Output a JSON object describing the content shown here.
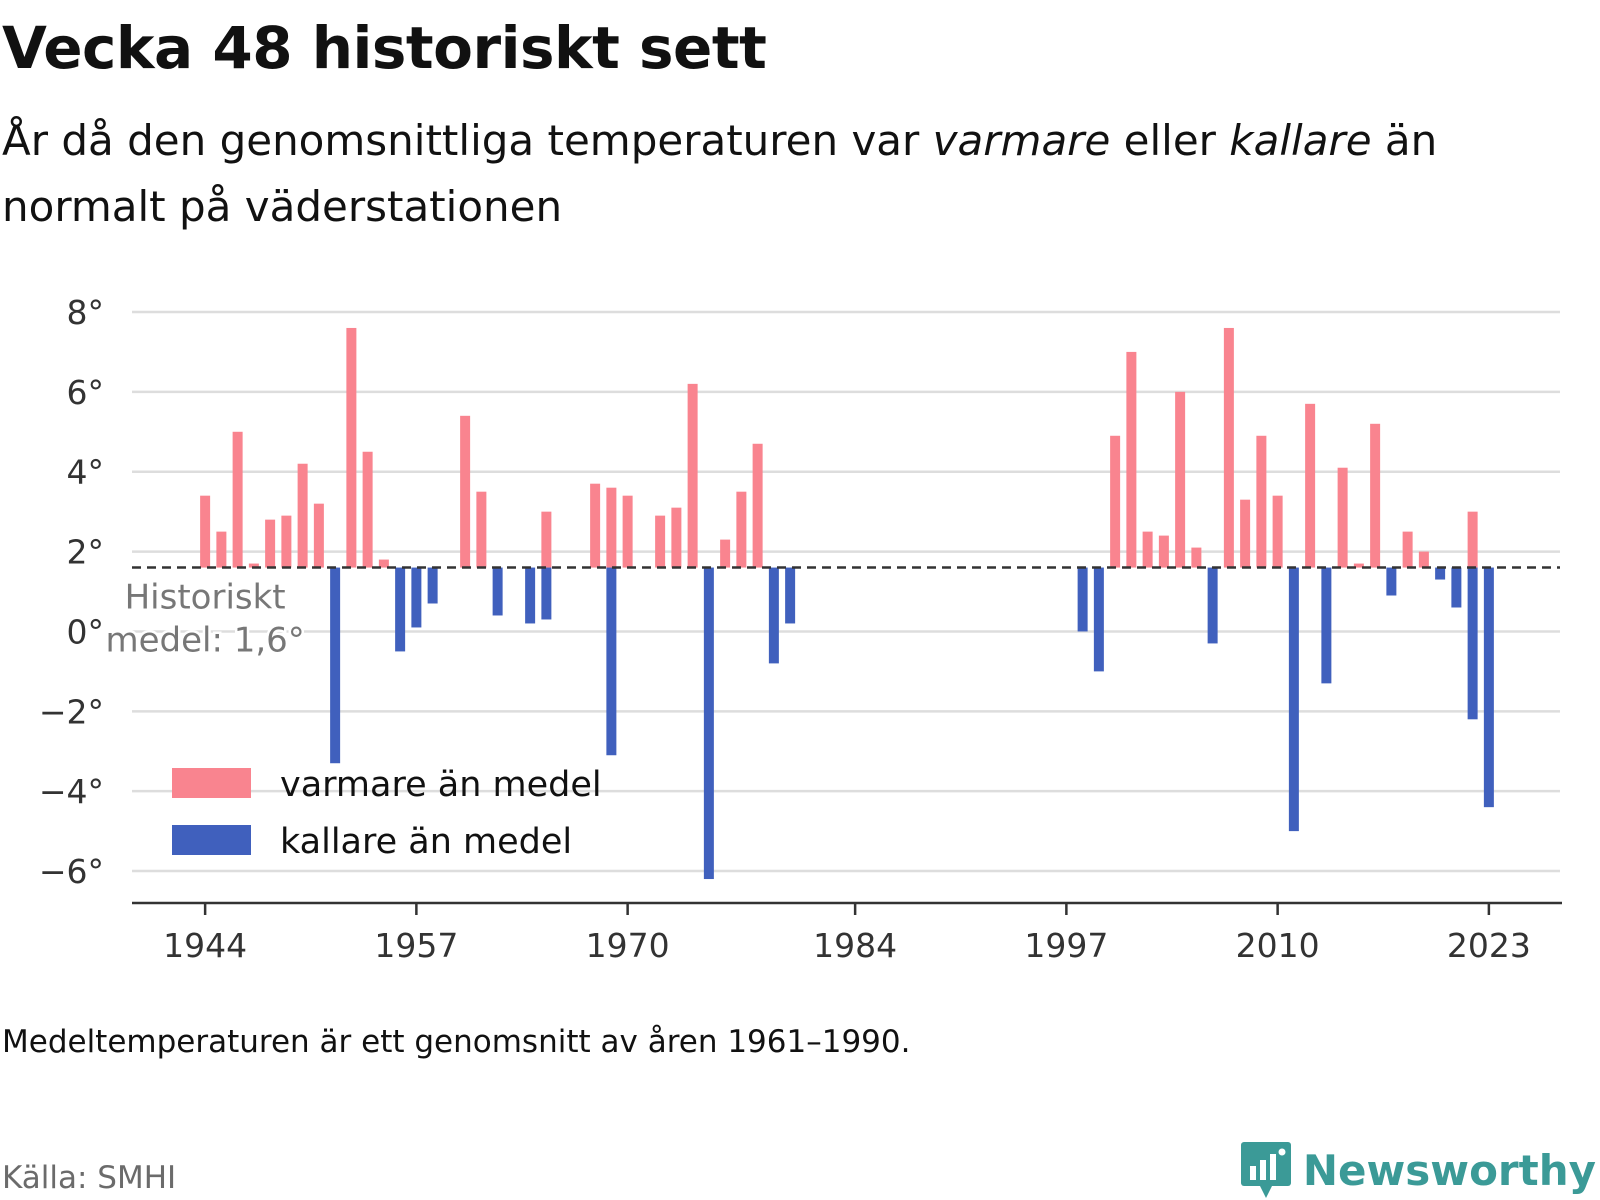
{
  "header": {
    "title": "Vecka 48 historiskt sett",
    "subtitle_1": "År då den genomsnittliga temperaturen var ",
    "subtitle_warm": "varmare",
    "subtitle_2": " eller ",
    "subtitle_cold": "kallare",
    "subtitle_3": " än normalt på väderstationen"
  },
  "footer": {
    "note": "Medeltemperaturen är ett genomsnitt av åren 1961–1990.",
    "source": "Källa: SMHI",
    "brand": "Newsworthy"
  },
  "colors": {
    "warm": "#f9848f",
    "cold": "#4060bd",
    "grid": "#dddddd",
    "axis": "#333333",
    "brand": "#3b9a97"
  },
  "chart_data": {
    "type": "bar",
    "baseline": 1.6,
    "baseline_label": [
      "Historiskt",
      "medel: 1,6°"
    ],
    "ylim": [
      -6.8,
      8.3
    ],
    "xlim": [
      1939.5,
      2027.5
    ],
    "yticks": [
      8,
      6,
      4,
      2,
      0,
      -2,
      -4,
      -6
    ],
    "ytick_labels": [
      "8°",
      "6°",
      "4°",
      "2°",
      "0°",
      "−2°",
      "−4°",
      "−6°"
    ],
    "xticks": [
      1944,
      1957,
      1970,
      1984,
      1997,
      2010,
      2023
    ],
    "xtick_labels": [
      "1944",
      "1957",
      "1970",
      "1984",
      "1997",
      "2010",
      "2023"
    ],
    "grid": true,
    "legend_position": "bottom-left",
    "legend": [
      {
        "label": "varmare än medel",
        "color": "#f9848f"
      },
      {
        "label": "kallare än medel",
        "color": "#4060bd"
      }
    ],
    "series": [
      {
        "name": "varmare än medel",
        "color": "#f9848f",
        "points": [
          [
            1944,
            3.4
          ],
          [
            1945,
            2.5
          ],
          [
            1946,
            5.0
          ],
          [
            1947,
            1.7
          ],
          [
            1948,
            2.8
          ],
          [
            1949,
            2.9
          ],
          [
            1950,
            4.2
          ],
          [
            1951,
            3.2
          ],
          [
            1953,
            7.6
          ],
          [
            1954,
            4.5
          ],
          [
            1955,
            1.8
          ],
          [
            1960,
            5.4
          ],
          [
            1961,
            3.5
          ],
          [
            1965,
            3.0
          ],
          [
            1968,
            3.7
          ],
          [
            1969,
            3.6
          ],
          [
            1970,
            3.4
          ],
          [
            1972,
            2.9
          ],
          [
            1973,
            3.1
          ],
          [
            1974,
            6.2
          ],
          [
            1976,
            2.3
          ],
          [
            1977,
            3.5
          ],
          [
            1978,
            4.7
          ],
          [
            2000,
            4.9
          ],
          [
            2001,
            7.0
          ],
          [
            2002,
            2.5
          ],
          [
            2003,
            2.4
          ],
          [
            2004,
            6.0
          ],
          [
            2005,
            2.1
          ],
          [
            2007,
            7.6
          ],
          [
            2008,
            3.3
          ],
          [
            2009,
            4.9
          ],
          [
            2010,
            3.4
          ],
          [
            2012,
            5.7
          ],
          [
            2014,
            4.1
          ],
          [
            2015,
            1.7
          ],
          [
            2016,
            5.2
          ],
          [
            2018,
            2.5
          ],
          [
            2019,
            2.0
          ],
          [
            2022,
            3.0
          ]
        ]
      },
      {
        "name": "kallare än medel",
        "color": "#4060bd",
        "points": [
          [
            1952,
            -3.3
          ],
          [
            1956,
            -0.5
          ],
          [
            1957,
            0.1
          ],
          [
            1958,
            0.7
          ],
          [
            1962,
            0.4
          ],
          [
            1964,
            0.2
          ],
          [
            1965,
            0.3
          ],
          [
            1969,
            -3.1
          ],
          [
            1975,
            -6.2
          ],
          [
            1979,
            -0.8
          ],
          [
            1980,
            0.2
          ],
          [
            1998,
            0.0
          ],
          [
            1999,
            -1.0
          ],
          [
            2006,
            -0.3
          ],
          [
            2011,
            -5.0
          ],
          [
            2013,
            -1.3
          ],
          [
            2017,
            0.9
          ],
          [
            2020,
            1.3
          ],
          [
            2021,
            0.6
          ],
          [
            2022,
            -2.2
          ],
          [
            2023,
            -4.4
          ]
        ]
      }
    ]
  }
}
